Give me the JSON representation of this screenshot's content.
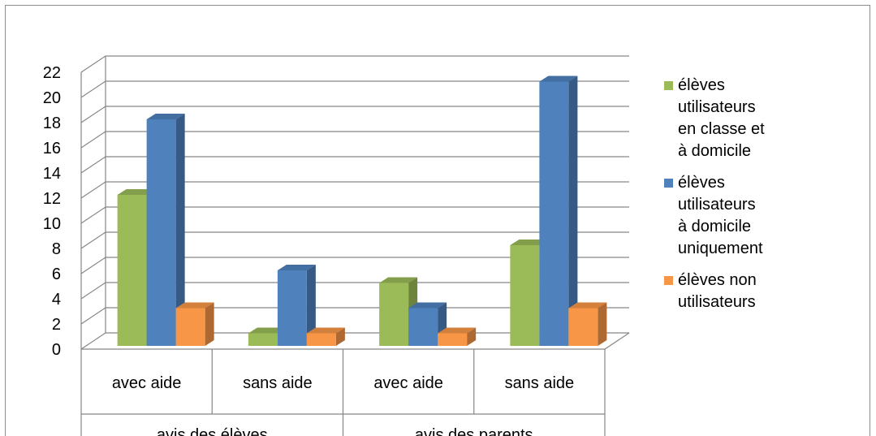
{
  "chart_data": {
    "type": "bar",
    "categories": [
      "avec aide",
      "sans aide",
      "avec aide",
      "sans aide"
    ],
    "groups": [
      {
        "label": "avis des élèves"
      },
      {
        "label": "avis des parents"
      }
    ],
    "series": [
      {
        "name": "élèves utilisateurs en classe et à domicile",
        "color": "#9bbb59",
        "values": [
          12,
          1,
          5,
          8
        ]
      },
      {
        "name": "élèves utilisateurs à domicile uniquement",
        "color": "#4f81bd",
        "values": [
          18,
          6,
          3,
          21
        ]
      },
      {
        "name": "élèves non utilisateurs",
        "color": "#f79646",
        "values": [
          3,
          1,
          1,
          3
        ]
      }
    ],
    "ylim": [
      0,
      22
    ],
    "yticks": [
      "0",
      "2",
      "4",
      "6",
      "8",
      "10",
      "12",
      "14",
      "16",
      "18",
      "20",
      "22"
    ],
    "grid": true,
    "legend_position": "right"
  },
  "legend": [
    {
      "label": "élèves\nutilisateurs\nen classe et\nà domicile",
      "color": "#9bbb59"
    },
    {
      "label": "élèves\nutilisateurs\nà domicile\nuniquement",
      "color": "#4f81bd"
    },
    {
      "label": "élèves non\nutilisateurs",
      "color": "#f79646"
    }
  ]
}
